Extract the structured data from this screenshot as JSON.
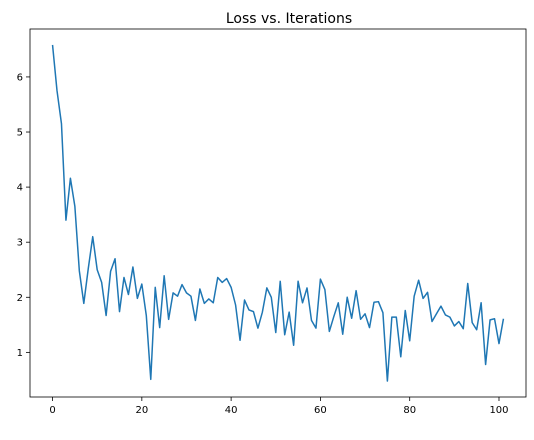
{
  "chart_data": {
    "type": "line",
    "title": "Loss vs. Iterations",
    "xlabel": "",
    "ylabel": "",
    "xlim": [
      -5.05,
      106.05
    ],
    "ylim": [
      0.19,
      6.87
    ],
    "xticks": [
      0,
      20,
      40,
      60,
      80,
      100
    ],
    "yticks": [
      1,
      2,
      3,
      4,
      5,
      6
    ],
    "grid": false,
    "legend": "none",
    "line_color": "#1f77b4",
    "series": [
      {
        "x": [
          0,
          1,
          2,
          3,
          4,
          5,
          6,
          7,
          8,
          9,
          10,
          11,
          12,
          13,
          14,
          15,
          16,
          17,
          18,
          19,
          20,
          21,
          22,
          23,
          24,
          25,
          26,
          27,
          28,
          29,
          30,
          31,
          32,
          33,
          34,
          35,
          36,
          37,
          38,
          39,
          40,
          41,
          42,
          43,
          44,
          45,
          46,
          47,
          48,
          49,
          50,
          51,
          52,
          53,
          54,
          55,
          56,
          57,
          58,
          59,
          60,
          61,
          62,
          63,
          64,
          65,
          66,
          67,
          68,
          69,
          70,
          71,
          72,
          73,
          74,
          75,
          76,
          77,
          78,
          79,
          80,
          81,
          82,
          83,
          84,
          85,
          86,
          87,
          88,
          89,
          90,
          91,
          92,
          93,
          94,
          95,
          96,
          97,
          98,
          99,
          100,
          101
        ],
        "values": [
          6.58,
          5.75,
          5.15,
          3.4,
          4.16,
          3.65,
          2.48,
          1.89,
          2.52,
          3.1,
          2.5,
          2.27,
          1.67,
          2.47,
          2.7,
          1.74,
          2.36,
          2.05,
          2.55,
          1.98,
          2.24,
          1.67,
          0.51,
          2.18,
          1.45,
          2.39,
          1.6,
          2.08,
          2.02,
          2.23,
          2.08,
          2.02,
          1.58,
          2.15,
          1.89,
          1.97,
          1.9,
          2.36,
          2.27,
          2.34,
          2.18,
          1.86,
          1.22,
          1.95,
          1.77,
          1.74,
          1.44,
          1.73,
          2.17,
          2.0,
          1.36,
          2.29,
          1.32,
          1.73,
          1.13,
          2.29,
          1.9,
          2.17,
          1.58,
          1.44,
          2.33,
          2.14,
          1.38,
          1.65,
          1.9,
          1.33,
          2.0,
          1.62,
          2.12,
          1.6,
          1.7,
          1.45,
          1.91,
          1.92,
          1.72,
          0.48,
          1.64,
          1.64,
          0.92,
          1.76,
          1.21,
          2.02,
          2.31,
          1.98,
          2.09,
          1.56,
          1.7,
          1.84,
          1.68,
          1.64,
          1.48,
          1.56,
          1.43,
          2.25,
          1.54,
          1.41,
          1.9,
          0.78,
          1.59,
          1.61,
          1.16,
          1.61
        ]
      }
    ]
  }
}
